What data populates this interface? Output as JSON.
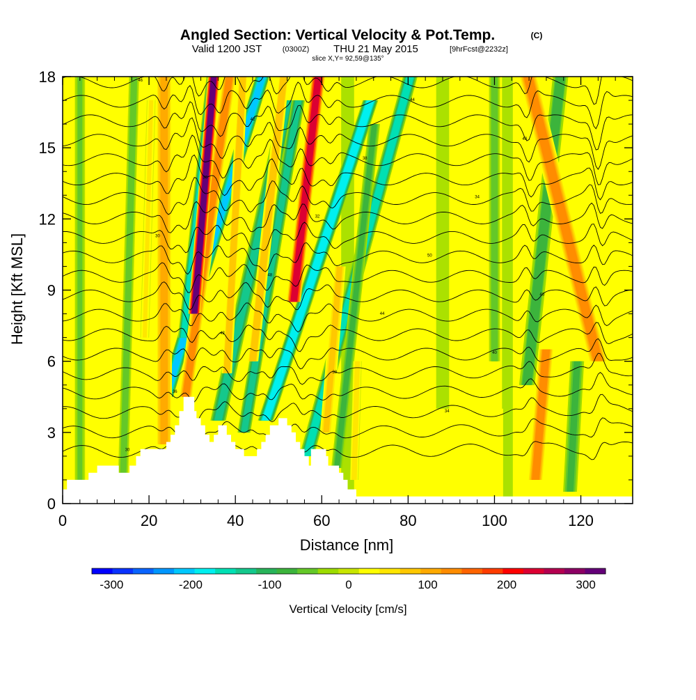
{
  "chart_data": {
    "type": "heatmap",
    "title": "Angled Section: Vertical Velocity & Pot.Temp.",
    "title_unit": "(C)",
    "subtitle": {
      "valid": "Valid 1200 JST",
      "zulu": "(0300Z)",
      "date": "THU 21 May 2015",
      "forecast": "[9hrFcst@2232z]"
    },
    "slice_label": "slice X,Y= 92,59@135°",
    "xlabel": "Distance [nm]",
    "ylabel": "Height [Kft MSL]",
    "xlim": [
      0,
      132
    ],
    "ylim": [
      0,
      18
    ],
    "x_ticks": [
      0,
      20,
      40,
      60,
      80,
      100,
      120
    ],
    "y_ticks": [
      0,
      3,
      6,
      9,
      12,
      15,
      18
    ],
    "colorbar": {
      "label": "Vertical Velocity [cm/s]",
      "range": [
        -325,
        325
      ],
      "tick_values": [
        -300,
        -200,
        -100,
        0,
        100,
        200,
        300
      ],
      "tick_labels": [
        "-300",
        "-200",
        "-100",
        "0",
        "100",
        "200",
        "300"
      ],
      "colors": [
        "#0000ff",
        "#0a32ff",
        "#0a64ff",
        "#0096ff",
        "#00c8ff",
        "#00f0f0",
        "#00e0b4",
        "#14c88c",
        "#28b45a",
        "#3cb43c",
        "#64c828",
        "#9cdc00",
        "#c8e600",
        "#ffff00",
        "#ffe600",
        "#ffc800",
        "#ffaa00",
        "#ff8c00",
        "#ff6400",
        "#ff3c00",
        "#ff0000",
        "#dc0032",
        "#b40050",
        "#8c0064",
        "#640078"
      ]
    },
    "updrafts": [
      {
        "x": 23.5,
        "y0": 2.5,
        "y1": 18,
        "slant": 0,
        "width": 1.8,
        "value": 110
      },
      {
        "x": 28.5,
        "y0": 4.5,
        "y1": 18,
        "slant": 0.25,
        "width": 1.6,
        "value": 120
      },
      {
        "x": 30.5,
        "y0": 8.0,
        "y1": 18,
        "slant": 0.15,
        "width": 1.4,
        "value": 300
      },
      {
        "x": 38.0,
        "y0": 5.5,
        "y1": 18,
        "slant": 0.1,
        "width": 1.2,
        "value": 90
      },
      {
        "x": 44.0,
        "y0": 6.0,
        "y1": 18,
        "slant": 0.2,
        "width": 1.3,
        "value": 90
      },
      {
        "x": 53.5,
        "y0": 8.5,
        "y1": 18,
        "slant": 0.2,
        "width": 1.6,
        "value": 240
      },
      {
        "x": 61.0,
        "y0": 3.0,
        "y1": 10,
        "slant": 0.15,
        "width": 1.4,
        "value": 80
      },
      {
        "x": 67.5,
        "y0": 1.0,
        "y1": 6,
        "slant": 0.05,
        "width": 1.0,
        "value": 60
      },
      {
        "x": 109.5,
        "y0": 1.0,
        "y1": 6.5,
        "slant": 0.15,
        "width": 1.8,
        "value": 140
      },
      {
        "x": 124.0,
        "y0": 6.0,
        "y1": 18,
        "slant": -0.45,
        "width": 2.2,
        "value": 120
      },
      {
        "x": 19.0,
        "y0": 7.0,
        "y1": 17,
        "slant": 0.05,
        "width": 1.0,
        "value": 40
      }
    ],
    "downdrafts": [
      {
        "x": 24.0,
        "y0": 4.5,
        "y1": 18,
        "slant": 0.55,
        "width": 1.6,
        "value": -200
      },
      {
        "x": 28.0,
        "y0": 7.0,
        "y1": 18,
        "slant": 0.2,
        "width": 1.3,
        "value": -160
      },
      {
        "x": 36.0,
        "y0": 3.5,
        "y1": 17,
        "slant": 0.4,
        "width": 1.8,
        "value": -130
      },
      {
        "x": 42.0,
        "y0": 3.0,
        "y1": 17,
        "slant": 0.3,
        "width": 1.5,
        "value": -120
      },
      {
        "x": 47.0,
        "y0": 3.5,
        "y1": 17,
        "slant": 0.6,
        "width": 1.8,
        "value": -190
      },
      {
        "x": 56.5,
        "y0": 2.0,
        "y1": 18,
        "slant": 0.5,
        "width": 1.7,
        "value": -150
      },
      {
        "x": 63.5,
        "y0": 1.5,
        "y1": 16,
        "slant": 0.2,
        "width": 1.3,
        "value": -80
      },
      {
        "x": 100.0,
        "y0": 6.0,
        "y1": 18,
        "slant": 0.0,
        "width": 1.3,
        "value": -60
      },
      {
        "x": 107.5,
        "y0": 5.0,
        "y1": 18,
        "slant": 0.2,
        "width": 1.8,
        "value": -90
      },
      {
        "x": 117.5,
        "y0": 0.5,
        "y1": 6.0,
        "slant": 0.1,
        "width": 1.6,
        "value": -80
      },
      {
        "x": 14.0,
        "y0": 1.0,
        "y1": 18,
        "slant": 0.05,
        "width": 1.2,
        "value": -55
      },
      {
        "x": 4.0,
        "y0": 1.0,
        "y1": 18,
        "slant": 0.0,
        "width": 1.2,
        "value": -45
      }
    ],
    "terrain": [
      [
        0,
        0.6
      ],
      [
        1,
        1.0
      ],
      [
        5,
        1.0
      ],
      [
        6,
        1.3
      ],
      [
        8,
        1.6
      ],
      [
        12,
        1.6
      ],
      [
        13,
        1.3
      ],
      [
        15,
        1.3
      ],
      [
        15.5,
        1.6
      ],
      [
        17,
        2.0
      ],
      [
        18,
        2.3
      ],
      [
        23,
        2.3
      ],
      [
        24,
        2.6
      ],
      [
        25,
        2.9
      ],
      [
        26,
        3.3
      ],
      [
        27,
        3.9
      ],
      [
        28,
        4.5
      ],
      [
        30,
        4.5
      ],
      [
        30.5,
        3.9
      ],
      [
        31,
        3.6
      ],
      [
        32,
        3.3
      ],
      [
        33,
        2.9
      ],
      [
        34,
        2.6
      ],
      [
        35,
        2.9
      ],
      [
        36,
        3.3
      ],
      [
        37,
        3.3
      ],
      [
        38,
        2.9
      ],
      [
        39,
        2.6
      ],
      [
        40,
        2.3
      ],
      [
        42,
        2.0
      ],
      [
        44,
        2.0
      ],
      [
        45,
        2.3
      ],
      [
        46,
        2.6
      ],
      [
        47,
        2.9
      ],
      [
        48,
        3.3
      ],
      [
        50,
        3.6
      ],
      [
        52,
        3.3
      ],
      [
        53,
        3.0
      ],
      [
        54,
        2.6
      ],
      [
        55,
        2.3
      ],
      [
        56,
        2.0
      ],
      [
        57,
        1.6
      ],
      [
        57.5,
        2.3
      ],
      [
        60,
        2.3
      ],
      [
        61,
        2.0
      ],
      [
        61.5,
        1.6
      ],
      [
        64,
        1.3
      ],
      [
        65,
        1.0
      ],
      [
        66,
        0.6
      ],
      [
        68,
        0.3
      ],
      [
        132,
        0.3
      ]
    ],
    "isentropes": {
      "count": 20,
      "labels": [
        "30",
        "32",
        "34",
        "36",
        "38",
        "40",
        "42",
        "44",
        "46",
        "48",
        "50"
      ]
    }
  }
}
